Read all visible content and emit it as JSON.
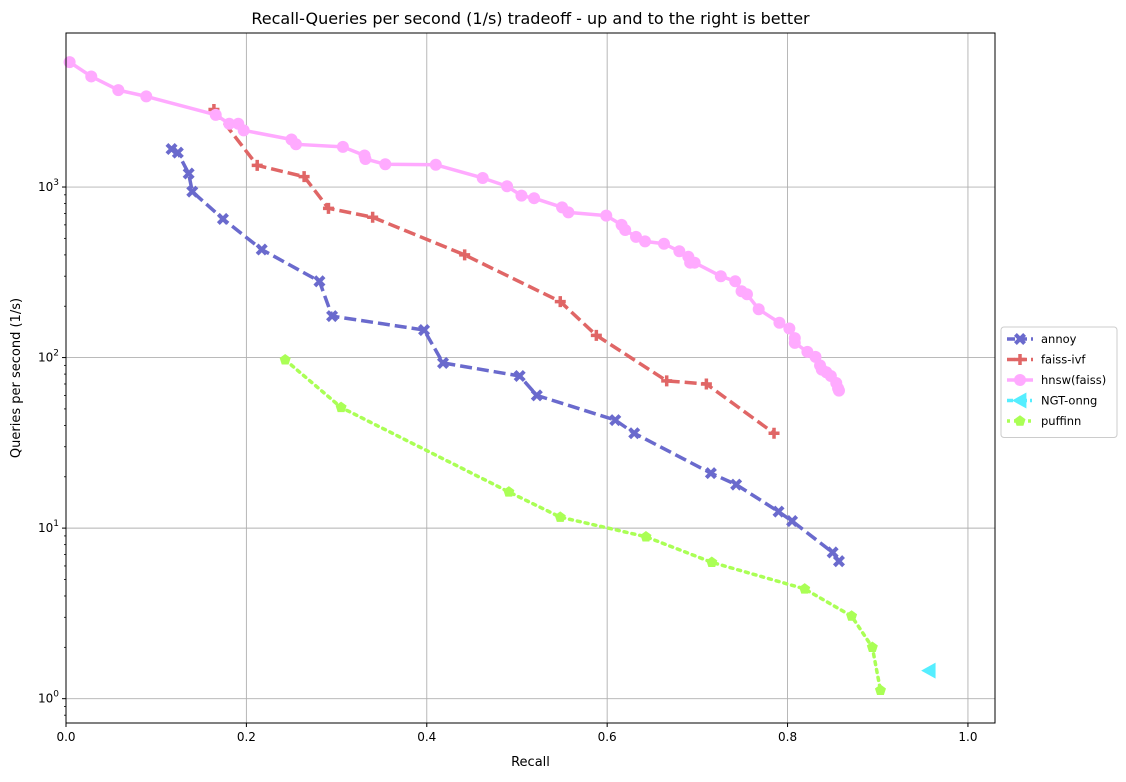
{
  "chart_data": {
    "type": "line",
    "title": "Recall-Queries per second (1/s) tradeoff - up and to the right is better",
    "xlabel": "Recall",
    "ylabel": "Queries per second (1/s)",
    "xlim": [
      0.0,
      1.03
    ],
    "ylim": [
      0.72,
      8000
    ],
    "yscale": "log",
    "grid": true,
    "legend_position": "right-outside",
    "x_ticks": [
      {
        "value": 0.0,
        "label": "0.0"
      },
      {
        "value": 0.2,
        "label": "0.2"
      },
      {
        "value": 0.4,
        "label": "0.4"
      },
      {
        "value": 0.6,
        "label": "0.6"
      },
      {
        "value": 0.8,
        "label": "0.8"
      },
      {
        "value": 1.0,
        "label": "1.0"
      }
    ],
    "y_ticks": [
      {
        "value": 1,
        "base": "10",
        "exp": "0"
      },
      {
        "value": 10,
        "base": "10",
        "exp": "1"
      },
      {
        "value": 100,
        "base": "10",
        "exp": "2"
      },
      {
        "value": 1000,
        "base": "10",
        "exp": "3"
      }
    ],
    "series": [
      {
        "name": "annoy",
        "color": "#6a6acd",
        "dash": "dashed",
        "marker": "x",
        "points": [
          [
            0.117,
            1670
          ],
          [
            0.124,
            1590
          ],
          [
            0.136,
            1200
          ],
          [
            0.14,
            940
          ],
          [
            0.174,
            650
          ],
          [
            0.217,
            430
          ],
          [
            0.281,
            280
          ],
          [
            0.295,
            175
          ],
          [
            0.397,
            145
          ],
          [
            0.418,
            93
          ],
          [
            0.503,
            78
          ],
          [
            0.522,
            60
          ],
          [
            0.609,
            43
          ],
          [
            0.63,
            36
          ],
          [
            0.715,
            21
          ],
          [
            0.743,
            18
          ],
          [
            0.79,
            12.5
          ],
          [
            0.805,
            11
          ],
          [
            0.85,
            7.2
          ],
          [
            0.857,
            6.4
          ]
        ]
      },
      {
        "name": "faiss-ivf",
        "color": "#e06666",
        "dash": "dashed",
        "marker": "plus",
        "points": [
          [
            0.164,
            2850
          ],
          [
            0.212,
            1340
          ],
          [
            0.264,
            1150
          ],
          [
            0.291,
            750
          ],
          [
            0.34,
            665
          ],
          [
            0.442,
            400
          ],
          [
            0.548,
            213
          ],
          [
            0.588,
            135
          ],
          [
            0.666,
            73
          ],
          [
            0.71,
            70
          ],
          [
            0.785,
            36
          ]
        ]
      },
      {
        "name": "hnsw(faiss)",
        "color": "#ffaaff",
        "dash": "solid",
        "marker": "circle",
        "points": [
          [
            0.004,
            5400
          ],
          [
            0.028,
            4450
          ],
          [
            0.058,
            3700
          ],
          [
            0.089,
            3400
          ],
          [
            0.166,
            2650
          ],
          [
            0.181,
            2350
          ],
          [
            0.191,
            2350
          ],
          [
            0.197,
            2150
          ],
          [
            0.25,
            1900
          ],
          [
            0.255,
            1780
          ],
          [
            0.307,
            1720
          ],
          [
            0.331,
            1530
          ],
          [
            0.332,
            1460
          ],
          [
            0.354,
            1360
          ],
          [
            0.41,
            1350
          ],
          [
            0.462,
            1130
          ],
          [
            0.489,
            1010
          ],
          [
            0.505,
            890
          ],
          [
            0.519,
            860
          ],
          [
            0.55,
            760
          ],
          [
            0.557,
            710
          ],
          [
            0.599,
            680
          ],
          [
            0.616,
            600
          ],
          [
            0.62,
            560
          ],
          [
            0.632,
            510
          ],
          [
            0.642,
            480
          ],
          [
            0.663,
            465
          ],
          [
            0.68,
            420
          ],
          [
            0.69,
            390
          ],
          [
            0.692,
            360
          ],
          [
            0.697,
            360
          ],
          [
            0.726,
            300
          ],
          [
            0.742,
            280
          ],
          [
            0.749,
            245
          ],
          [
            0.755,
            235
          ],
          [
            0.768,
            192
          ],
          [
            0.791,
            160
          ],
          [
            0.802,
            148
          ],
          [
            0.808,
            130
          ],
          [
            0.808,
            122
          ],
          [
            0.822,
            108
          ],
          [
            0.831,
            101
          ],
          [
            0.836,
            90
          ],
          [
            0.838,
            85
          ],
          [
            0.843,
            82
          ],
          [
            0.848,
            78
          ],
          [
            0.854,
            71
          ],
          [
            0.856,
            66
          ],
          [
            0.857,
            64
          ]
        ]
      },
      {
        "name": "NGT-onng",
        "color": "#55eeff",
        "dash": "dashdot",
        "marker": "triangle-left",
        "points": [
          [
            0.957,
            1.46
          ]
        ]
      },
      {
        "name": "puffinn",
        "color": "#aaff55",
        "dash": "dotted",
        "marker": "pentagon",
        "points": [
          [
            0.243,
            97
          ],
          [
            0.305,
            51
          ],
          [
            0.491,
            16.3
          ],
          [
            0.548,
            11.6
          ],
          [
            0.643,
            8.9
          ],
          [
            0.716,
            6.3
          ],
          [
            0.819,
            4.4
          ],
          [
            0.871,
            3.05
          ],
          [
            0.894,
            2.0
          ],
          [
            0.903,
            1.12
          ]
        ]
      }
    ]
  }
}
